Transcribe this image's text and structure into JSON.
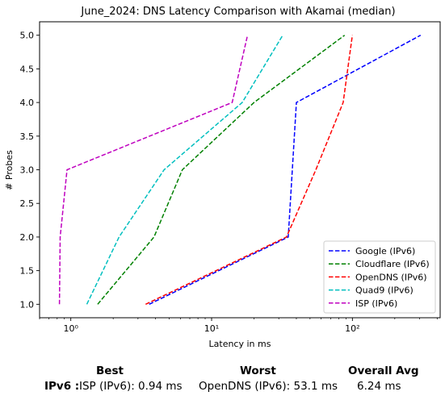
{
  "chart_data": {
    "type": "line",
    "title": "June_2024: DNS Latency Comparison with Akamai (median)",
    "xlabel": "Latency in ms",
    "ylabel": "# Probes",
    "xscale": "log",
    "xlim": [
      0.6,
      420
    ],
    "ylim": [
      0.8,
      5.2
    ],
    "xticks": [
      1,
      10,
      100
    ],
    "xtick_labels": [
      "10⁰",
      "10¹",
      "10²"
    ],
    "yticks": [
      1.0,
      1.5,
      2.0,
      2.5,
      3.0,
      3.5,
      4.0,
      4.5,
      5.0
    ],
    "ytick_labels": [
      "1.0",
      "1.5",
      "2.0",
      "2.5",
      "3.0",
      "3.5",
      "4.0",
      "4.5",
      "5.0"
    ],
    "grid": false,
    "legend_position": "lower-right",
    "series": [
      {
        "name": "Google (IPv6)",
        "color": "#0000ff",
        "style": "dashed",
        "points": [
          [
            3.6,
            1
          ],
          [
            35,
            2
          ],
          [
            40,
            4
          ],
          [
            305,
            5
          ]
        ]
      },
      {
        "name": "Cloudflare (IPv6)",
        "color": "#008000",
        "style": "dashed",
        "points": [
          [
            1.55,
            1
          ],
          [
            3.9,
            2
          ],
          [
            6.2,
            3
          ],
          [
            20,
            4
          ],
          [
            88,
            5
          ]
        ]
      },
      {
        "name": "OpenDNS (IPv6)",
        "color": "#ff0000",
        "style": "dashed",
        "points": [
          [
            3.4,
            1
          ],
          [
            34,
            2
          ],
          [
            55,
            3
          ],
          [
            86,
            4
          ],
          [
            100,
            5
          ]
        ]
      },
      {
        "name": "Quad9 (IPv6)",
        "color": "#00bfbf",
        "style": "dashed",
        "points": [
          [
            1.3,
            1
          ],
          [
            2.2,
            2
          ],
          [
            4.6,
            3
          ],
          [
            16.5,
            4
          ],
          [
            32,
            5
          ]
        ]
      },
      {
        "name": "ISP (IPv6)",
        "color": "#bf00bf",
        "style": "dashed",
        "points": [
          [
            0.83,
            1
          ],
          [
            0.84,
            2
          ],
          [
            0.94,
            3
          ],
          [
            14,
            4
          ],
          [
            18,
            5
          ]
        ]
      }
    ]
  },
  "summary": {
    "best_header": "Best",
    "worst_header": "Worst",
    "avg_header": "Overall Avg",
    "row_label": "IPv6 :",
    "best_value": "ISP (IPv6): 0.94 ms",
    "worst_value": "OpenDNS (IPv6): 53.1 ms",
    "avg_value": "6.24 ms"
  }
}
